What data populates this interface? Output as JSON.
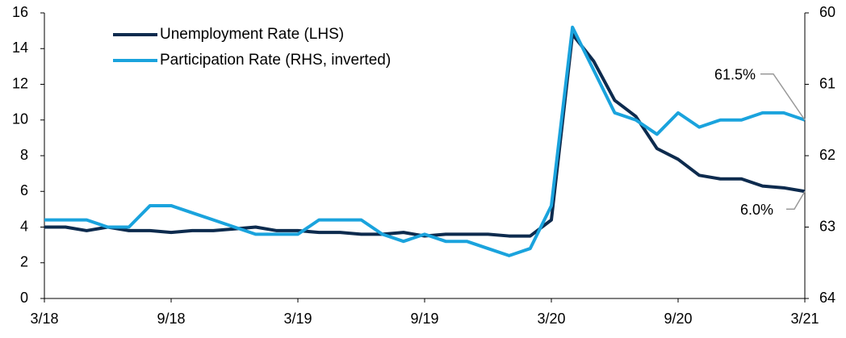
{
  "chart_data": {
    "type": "line",
    "categories": [
      "3/18",
      null,
      null,
      null,
      null,
      null,
      "9/18",
      null,
      null,
      null,
      null,
      null,
      "3/19",
      null,
      null,
      null,
      null,
      null,
      "9/19",
      null,
      null,
      null,
      null,
      null,
      "3/20",
      null,
      null,
      null,
      null,
      null,
      "9/20",
      null,
      null,
      null,
      null,
      null,
      "3/21"
    ],
    "series": [
      {
        "name": "Unemployment Rate (LHS)",
        "color": "#0d2b4e",
        "axis": "y",
        "values": [
          4.0,
          4.0,
          3.8,
          4.0,
          3.8,
          3.8,
          3.7,
          3.8,
          3.8,
          3.9,
          4.0,
          3.8,
          3.8,
          3.7,
          3.7,
          3.6,
          3.6,
          3.7,
          3.5,
          3.6,
          3.6,
          3.6,
          3.5,
          3.5,
          4.4,
          14.8,
          13.3,
          11.1,
          10.2,
          8.4,
          7.8,
          6.9,
          6.7,
          6.7,
          6.3,
          6.2,
          6.0
        ],
        "value_labels": [
          null,
          null,
          null,
          null,
          null,
          null,
          null,
          null,
          null,
          null,
          null,
          null,
          null,
          null,
          null,
          null,
          null,
          null,
          null,
          null,
          null,
          null,
          null,
          null,
          null,
          null,
          null,
          null,
          null,
          null,
          null,
          null,
          null,
          null,
          null,
          null,
          "6.0%"
        ]
      },
      {
        "name": "Participation Rate (RHS, inverted)",
        "color": "#1aa3dd",
        "axis": "y2",
        "values": [
          62.9,
          62.9,
          62.9,
          63.0,
          63.0,
          62.7,
          62.7,
          62.8,
          62.9,
          63.0,
          63.1,
          63.1,
          63.1,
          62.9,
          62.9,
          62.9,
          63.1,
          63.2,
          63.1,
          63.2,
          63.2,
          63.3,
          63.4,
          63.3,
          62.7,
          60.2,
          60.8,
          61.4,
          61.5,
          61.7,
          61.4,
          61.6,
          61.5,
          61.5,
          61.4,
          61.4,
          61.5
        ],
        "value_labels": [
          null,
          null,
          null,
          null,
          null,
          null,
          null,
          null,
          null,
          null,
          null,
          null,
          null,
          null,
          null,
          null,
          null,
          null,
          null,
          null,
          null,
          null,
          null,
          null,
          null,
          null,
          null,
          null,
          null,
          null,
          null,
          null,
          null,
          null,
          null,
          null,
          "61.5%"
        ]
      }
    ],
    "ylim": [
      0,
      16
    ],
    "yticks": [
      0,
      2,
      4,
      6,
      8,
      10,
      12,
      14,
      16
    ],
    "y2lim": [
      60,
      64
    ],
    "y2ticks": [
      60,
      61,
      62,
      63,
      64
    ],
    "y2_inverted": true,
    "legend": "upper left",
    "grid": false
  }
}
